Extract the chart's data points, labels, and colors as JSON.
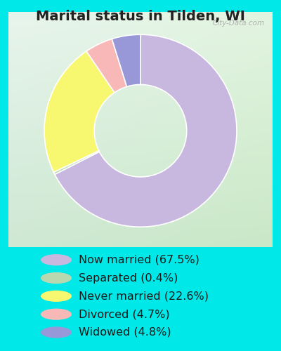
{
  "title": "Marital status in Tilden, WI",
  "slices": [
    {
      "label": "Now married (67.5%)",
      "value": 67.5,
      "color": "#c8b8e0"
    },
    {
      "label": "Separated (0.4%)",
      "value": 0.4,
      "color": "#b8d8b0"
    },
    {
      "label": "Never married (22.6%)",
      "value": 22.6,
      "color": "#f8f870"
    },
    {
      "label": "Divorced (4.7%)",
      "value": 4.7,
      "color": "#f8b8b8"
    },
    {
      "label": "Widowed (4.8%)",
      "value": 4.8,
      "color": "#9898d8"
    }
  ],
  "bg_color_outer": "#00e8e8",
  "title_color": "#222222",
  "title_fontsize": 14,
  "legend_fontsize": 11.5,
  "watermark": "City-Data.com",
  "donut_width": 0.52
}
